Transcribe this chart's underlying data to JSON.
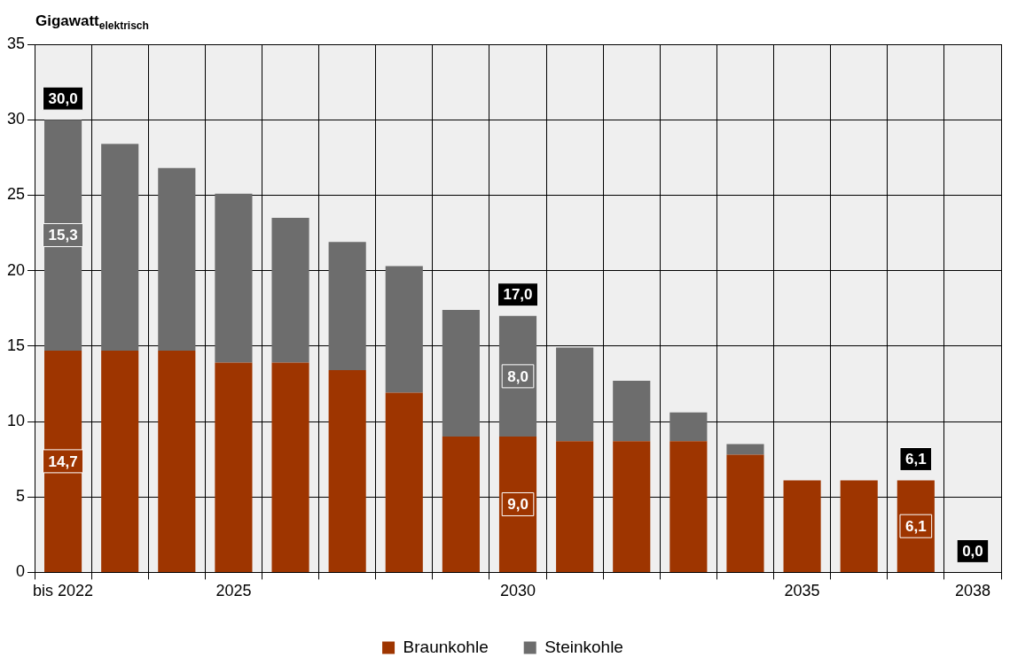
{
  "chart_data": {
    "type": "bar",
    "stacked": true,
    "ylabel": "Gigawatt$_{elektrisch}$",
    "categories": [
      "bis 2022",
      null,
      null,
      "2025",
      null,
      null,
      null,
      null,
      "2030",
      null,
      null,
      null,
      null,
      "2035",
      null,
      null,
      "2038"
    ],
    "series": [
      {
        "name": "Braunkohle",
        "color": "#9e3500",
        "values": [
          14.7,
          14.7,
          14.7,
          13.9,
          13.9,
          13.4,
          11.9,
          9.0,
          9.0,
          8.7,
          8.7,
          8.7,
          7.8,
          6.1,
          6.1,
          6.1,
          0
        ],
        "value_labels": [
          "14,7",
          null,
          null,
          null,
          null,
          null,
          null,
          null,
          "9,0",
          null,
          null,
          null,
          null,
          null,
          null,
          "6,1",
          null
        ]
      },
      {
        "name": "Steinkohle",
        "color": "#6d6d6d",
        "values": [
          15.3,
          13.7,
          12.1,
          11.2,
          9.6,
          8.5,
          8.4,
          8.4,
          8.0,
          6.2,
          4.0,
          1.9,
          0.7,
          0,
          0,
          0,
          0
        ],
        "value_labels": [
          "15,3",
          null,
          null,
          null,
          null,
          null,
          null,
          null,
          "8,0",
          null,
          null,
          null,
          null,
          null,
          null,
          null,
          null
        ]
      }
    ],
    "totals": [
      "30,0",
      null,
      null,
      null,
      null,
      null,
      null,
      null,
      "17,0",
      null,
      null,
      null,
      null,
      null,
      null,
      "6,1",
      "0,0"
    ],
    "ylim": [
      0,
      35
    ],
    "yticks": [
      0,
      5,
      10,
      15,
      20,
      25,
      30,
      35
    ],
    "grid": true,
    "legend": "bottom"
  }
}
